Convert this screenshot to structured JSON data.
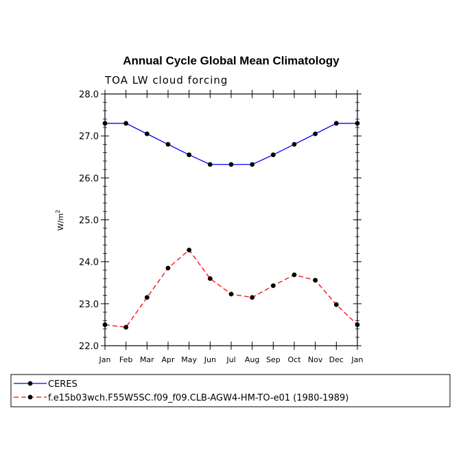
{
  "chart_data": {
    "type": "line",
    "title": "Annual Cycle Global Mean Climatology",
    "subtitle": "TOA LW cloud forcing",
    "xlabel": "",
    "ylabel_base": "W/m",
    "ylabel_sup": "2",
    "categories": [
      "Jan",
      "Feb",
      "Mar",
      "Apr",
      "May",
      "Jun",
      "Jul",
      "Aug",
      "Sep",
      "Oct",
      "Nov",
      "Dec",
      "Jan"
    ],
    "ylim": [
      22.0,
      28.0
    ],
    "yticks": [
      22.0,
      23.0,
      24.0,
      25.0,
      26.0,
      27.0,
      28.0
    ],
    "ytick_labels": [
      "22.0",
      "23.0",
      "24.0",
      "25.0",
      "26.0",
      "27.0",
      "28.0"
    ],
    "grid": false,
    "legend_position": "bottom",
    "series": [
      {
        "name": "CERES",
        "color": "#0000ff",
        "dash": "solid",
        "values": [
          27.3,
          27.3,
          27.05,
          26.8,
          26.55,
          26.32,
          26.32,
          26.32,
          26.55,
          26.8,
          27.05,
          27.3,
          27.3
        ]
      },
      {
        "name": "f.e15b03wch.F55W5SC.f09_f09.CLB-AGW4-HM-TO-e01 (1980-1989)",
        "color": "#ff0000",
        "dash": "dashed",
        "values": [
          22.5,
          22.44,
          23.15,
          23.85,
          24.28,
          23.6,
          23.23,
          23.15,
          23.43,
          23.69,
          23.56,
          22.98,
          22.5
        ]
      }
    ]
  }
}
